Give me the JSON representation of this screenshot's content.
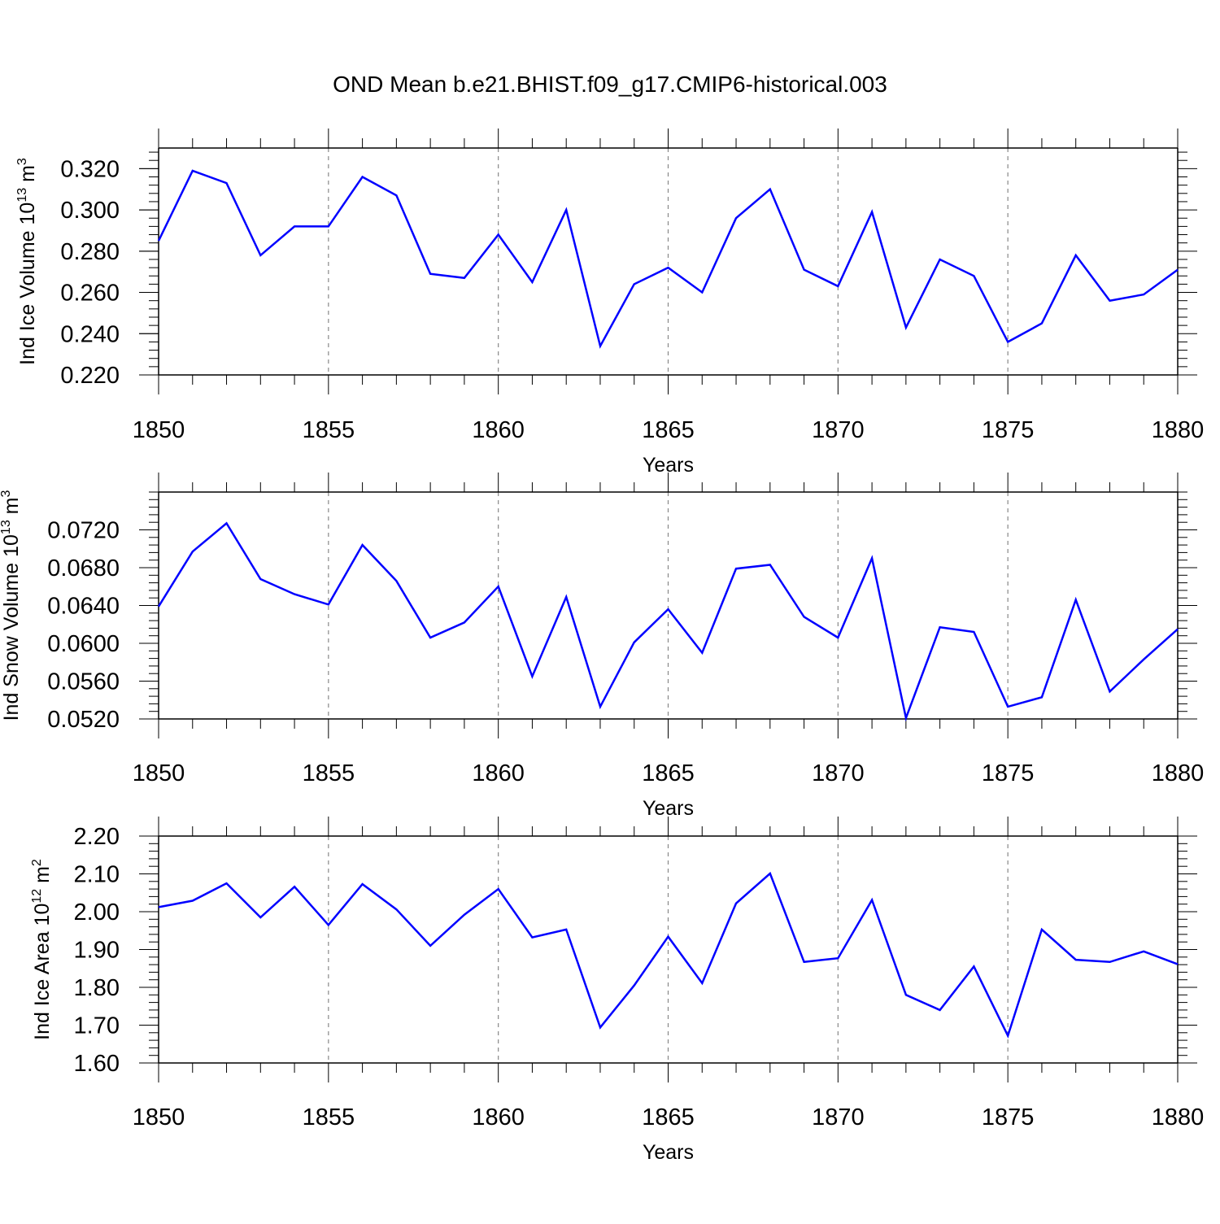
{
  "title": "OND Mean b.e21.BHIST.f09_g17.CMIP6-historical.003",
  "colors": {
    "line": "#0000ff",
    "axis": "#000000",
    "grid": "#888888"
  },
  "chart_data": [
    {
      "type": "line",
      "ylabel_main": "Ind Ice Volume 10",
      "ylabel_exp": "13",
      "ylabel_unit": " m",
      "ylabel_unit_exp": "3",
      "xlabel": "Years",
      "xlim": [
        1850,
        1880
      ],
      "ylim": [
        0.22,
        0.33
      ],
      "yticks": [
        0.22,
        0.24,
        0.26,
        0.28,
        0.3,
        0.32
      ],
      "ytick_labels": [
        "0.220",
        "0.240",
        "0.260",
        "0.280",
        "0.300",
        "0.320"
      ],
      "xticks": [
        1850,
        1855,
        1860,
        1865,
        1870,
        1875,
        1880
      ],
      "xtick_labels": [
        "1850",
        "1855",
        "1860",
        "1865",
        "1870",
        "1875",
        "1880"
      ],
      "x": [
        1850,
        1851,
        1852,
        1853,
        1854,
        1855,
        1856,
        1857,
        1858,
        1859,
        1860,
        1861,
        1862,
        1863,
        1864,
        1865,
        1866,
        1867,
        1868,
        1869,
        1870,
        1871,
        1872,
        1873,
        1874,
        1875,
        1876,
        1877,
        1878,
        1879,
        1880
      ],
      "series": [
        {
          "values": [
            0.285,
            0.319,
            0.313,
            0.278,
            0.292,
            0.292,
            0.316,
            0.307,
            0.269,
            0.267,
            0.288,
            0.265,
            0.3,
            0.234,
            0.264,
            0.272,
            0.26,
            0.296,
            0.31,
            0.271,
            0.263,
            0.299,
            0.243,
            0.276,
            0.268,
            0.236,
            0.245,
            0.278,
            0.256,
            0.259,
            0.271
          ]
        }
      ]
    },
    {
      "type": "line",
      "ylabel_main": "Ind Snow Volume 10",
      "ylabel_exp": "13",
      "ylabel_unit": " m",
      "ylabel_unit_exp": "3",
      "xlabel": "Years",
      "xlim": [
        1850,
        1880
      ],
      "ylim": [
        0.052,
        0.076
      ],
      "yticks": [
        0.052,
        0.056,
        0.06,
        0.064,
        0.068,
        0.072
      ],
      "ytick_labels": [
        "0.0520",
        "0.0560",
        "0.0600",
        "0.0640",
        "0.0680",
        "0.0720"
      ],
      "xticks": [
        1850,
        1855,
        1860,
        1865,
        1870,
        1875,
        1880
      ],
      "xtick_labels": [
        "1850",
        "1855",
        "1860",
        "1865",
        "1870",
        "1875",
        "1880"
      ],
      "x": [
        1850,
        1851,
        1852,
        1853,
        1854,
        1855,
        1856,
        1857,
        1858,
        1859,
        1860,
        1861,
        1862,
        1863,
        1864,
        1865,
        1866,
        1867,
        1868,
        1869,
        1870,
        1871,
        1872,
        1873,
        1874,
        1875,
        1876,
        1877,
        1878,
        1879,
        1880
      ],
      "series": [
        {
          "values": [
            0.0639,
            0.0697,
            0.0727,
            0.0668,
            0.0652,
            0.0641,
            0.0704,
            0.0666,
            0.0606,
            0.0622,
            0.066,
            0.0565,
            0.0649,
            0.0533,
            0.0601,
            0.0636,
            0.059,
            0.0679,
            0.0683,
            0.0628,
            0.0606,
            0.069,
            0.0521,
            0.0617,
            0.0612,
            0.0533,
            0.0543,
            0.0646,
            0.0549,
            0.0583,
            0.0615
          ]
        }
      ]
    },
    {
      "type": "line",
      "ylabel_main": "Ind Ice Area 10",
      "ylabel_exp": "12",
      "ylabel_unit": " m",
      "ylabel_unit_exp": "2",
      "xlabel": "Years",
      "xlim": [
        1850,
        1880
      ],
      "ylim": [
        1.6,
        2.2
      ],
      "yticks": [
        1.6,
        1.7,
        1.8,
        1.9,
        2.0,
        2.1,
        2.2
      ],
      "ytick_labels": [
        "1.60",
        "1.70",
        "1.80",
        "1.90",
        "2.00",
        "2.10",
        "2.20"
      ],
      "xticks": [
        1850,
        1855,
        1860,
        1865,
        1870,
        1875,
        1880
      ],
      "xtick_labels": [
        "1850",
        "1855",
        "1860",
        "1865",
        "1870",
        "1875",
        "1880"
      ],
      "x": [
        1850,
        1851,
        1852,
        1853,
        1854,
        1855,
        1856,
        1857,
        1858,
        1859,
        1860,
        1861,
        1862,
        1863,
        1864,
        1865,
        1866,
        1867,
        1868,
        1869,
        1870,
        1871,
        1872,
        1873,
        1874,
        1875,
        1876,
        1877,
        1878,
        1879,
        1880
      ],
      "series": [
        {
          "values": [
            2.012,
            2.029,
            2.075,
            1.985,
            2.066,
            1.965,
            2.073,
            2.006,
            1.91,
            1.992,
            2.06,
            1.932,
            1.953,
            1.694,
            1.805,
            1.934,
            1.811,
            2.022,
            2.101,
            1.867,
            1.877,
            2.031,
            1.78,
            1.74,
            1.855,
            1.672,
            1.953,
            1.873,
            1.867,
            1.895,
            1.861
          ]
        }
      ]
    }
  ]
}
